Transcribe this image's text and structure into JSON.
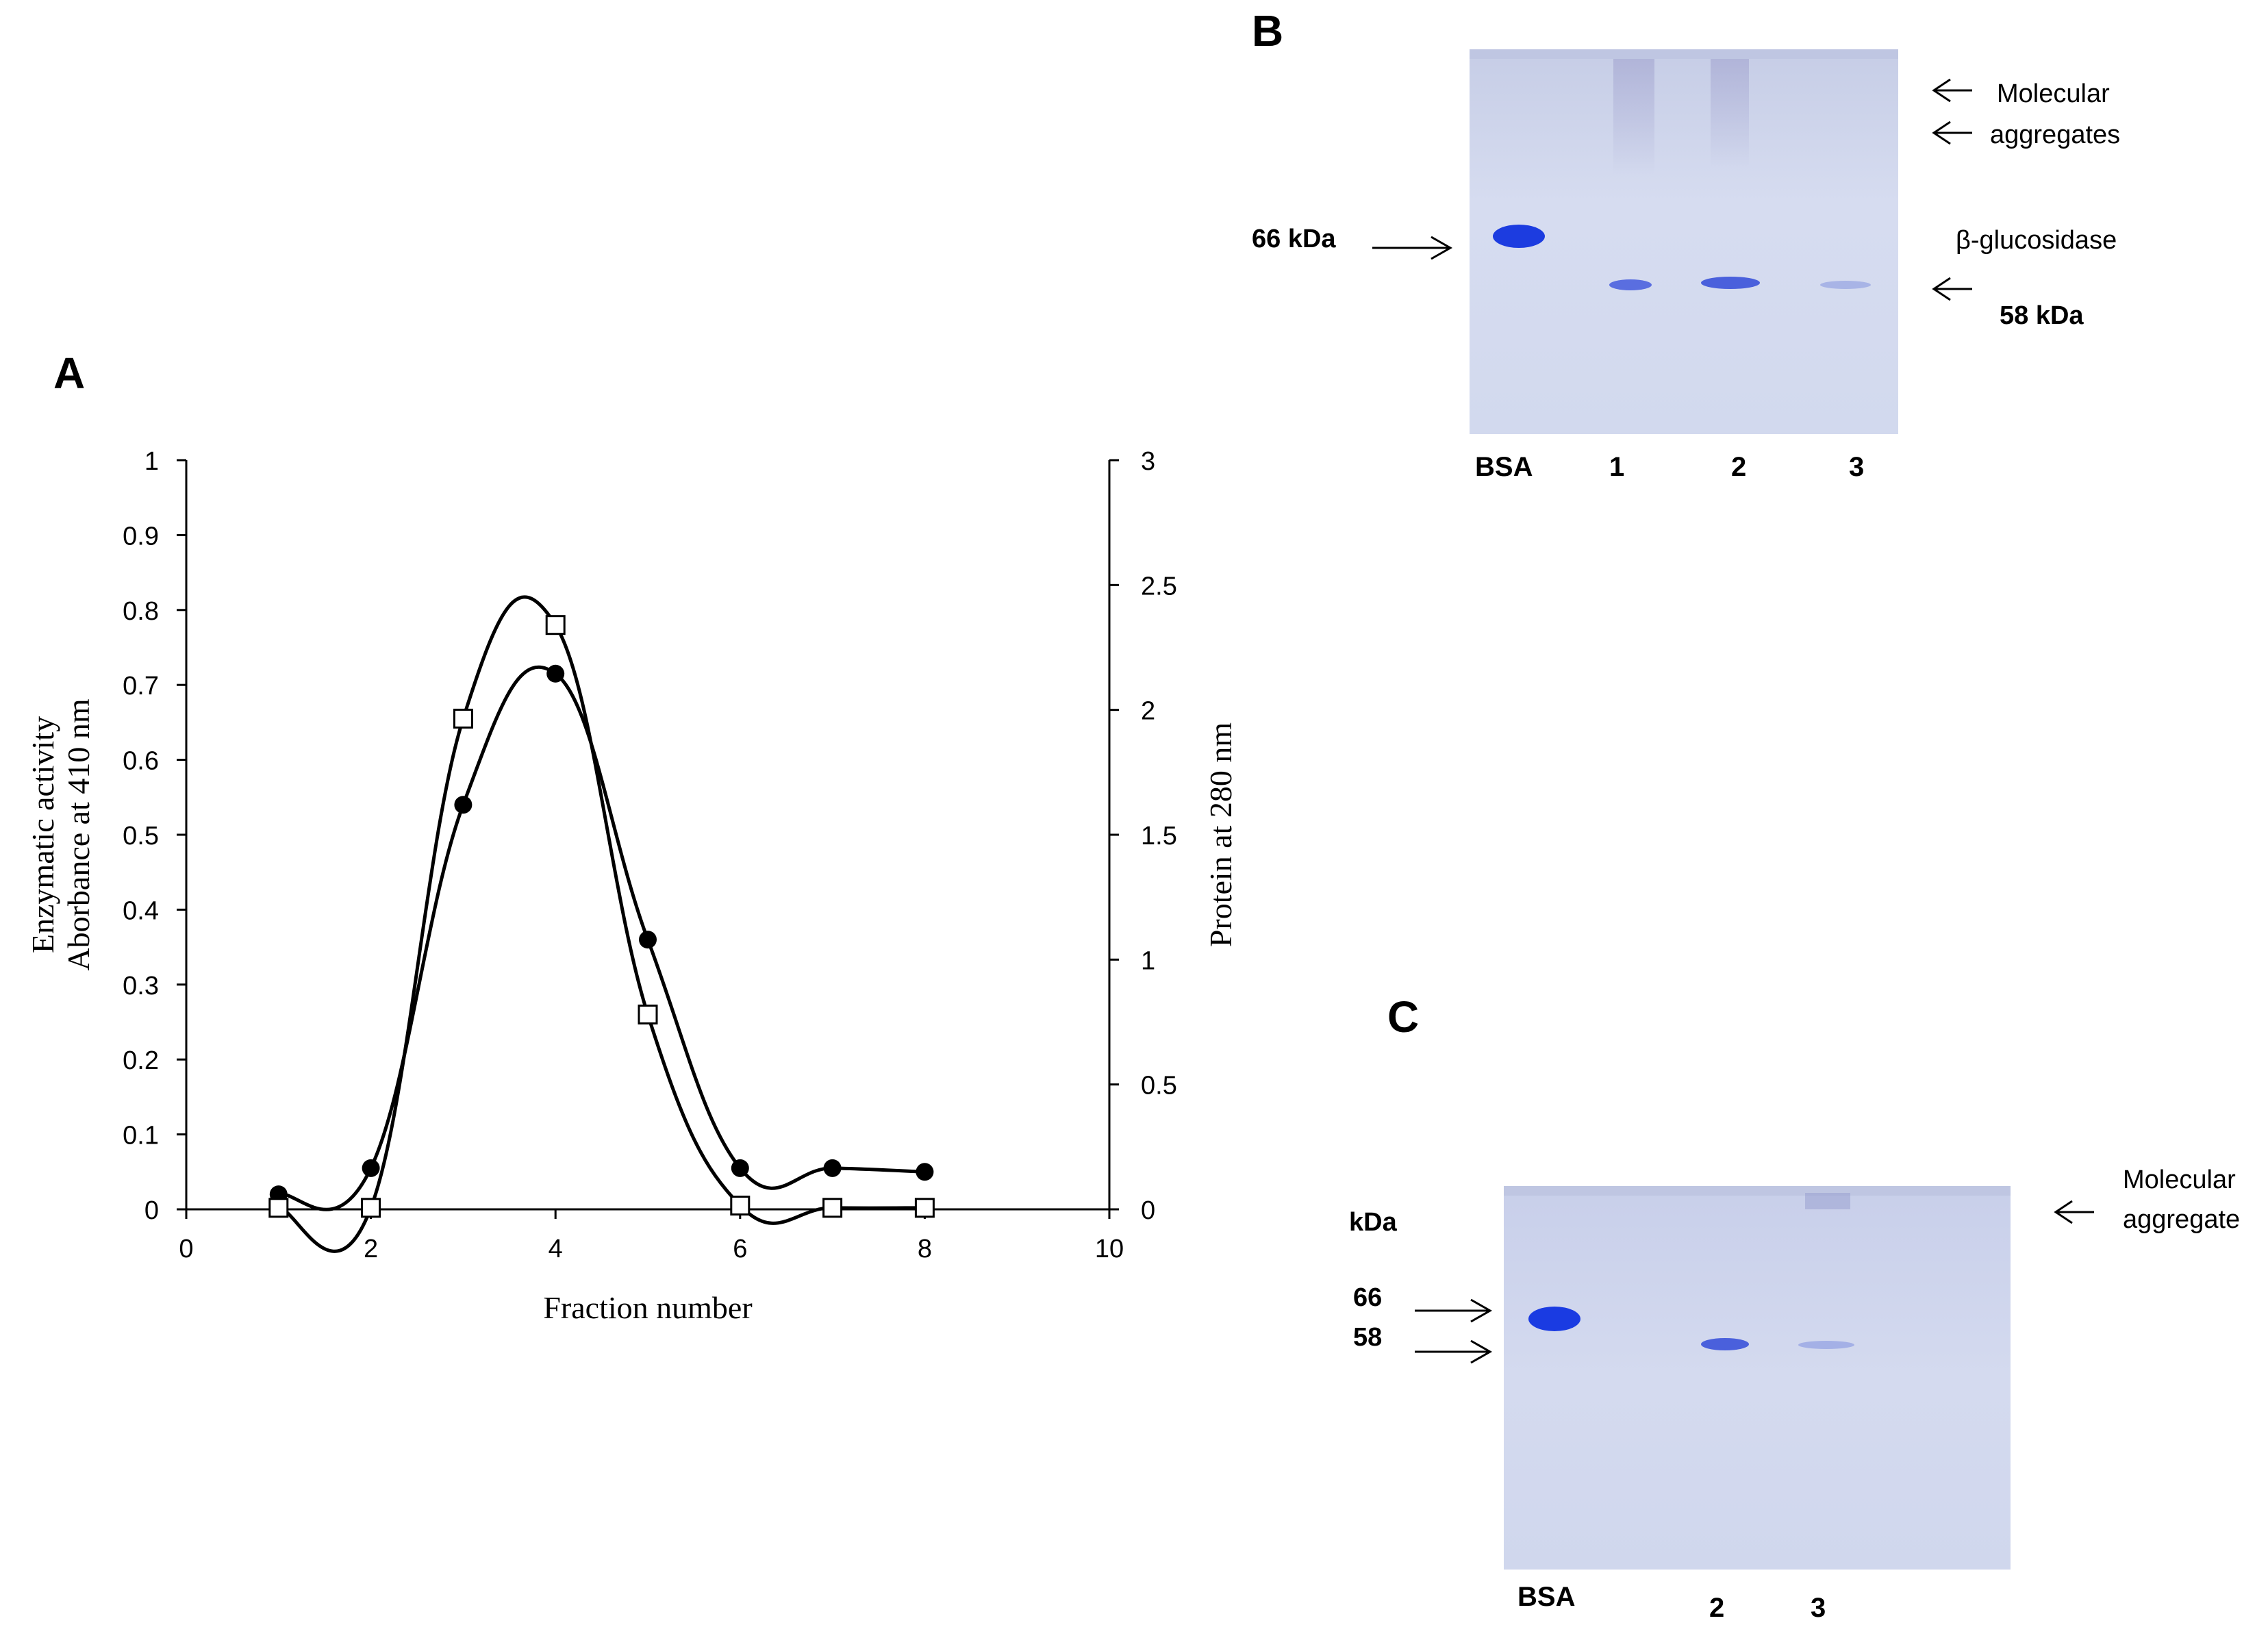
{
  "panels": {
    "a": "A",
    "b": "B",
    "c": "C"
  },
  "chart_data": {
    "type": "line",
    "title": "",
    "xlabel": "Fraction number",
    "ylabel_left": [
      "Enzymatic activity",
      "Aborbance at 410 nm"
    ],
    "ylabel_right": "Protein at 280 nm",
    "xlim": [
      0,
      10
    ],
    "ylim_left": [
      0,
      1
    ],
    "ylim_right": [
      0,
      3
    ],
    "x_ticks": [
      "0",
      "2",
      "4",
      "6",
      "8",
      "10"
    ],
    "y_left_ticks": [
      "0",
      "0.1",
      "0.2",
      "0.3",
      "0.4",
      "0.5",
      "0.6",
      "0.7",
      "0.8",
      "0.9",
      "1"
    ],
    "y_right_ticks": [
      "0",
      "0.5",
      "1",
      "1.5",
      "2",
      "2.5",
      "3"
    ],
    "series": [
      {
        "name": "Enzymatic activity",
        "marker": "filled-circle",
        "axis": "left",
        "x": [
          1,
          2,
          3,
          4,
          5,
          6,
          7,
          8
        ],
        "values": [
          0.02,
          0.055,
          0.54,
          0.715,
          0.36,
          0.055,
          0.055,
          0.05
        ]
      },
      {
        "name": "Protein",
        "marker": "open-square",
        "axis": "left",
        "x": [
          1,
          2,
          3,
          4,
          5,
          6,
          7,
          8
        ],
        "values": [
          0.002,
          0.002,
          0.655,
          0.78,
          0.26,
          0.005,
          0.002,
          0.002
        ]
      }
    ]
  },
  "gel_b": {
    "lanes": [
      "BSA",
      "1",
      "2",
      "3"
    ],
    "left_marker": "66 kDa",
    "right_labels": {
      "agg_1": "Molecular",
      "agg_2": "aggregates",
      "enzyme": "β-glucosidase",
      "size": "58 kDa"
    }
  },
  "gel_c": {
    "unit": "kDa",
    "markers": [
      "66",
      "58"
    ],
    "lanes": [
      "BSA",
      "2",
      "3"
    ],
    "right_labels": {
      "agg_1": "Molecular",
      "agg_2": "aggregate"
    }
  },
  "colors": {
    "band": "#1f3fd6",
    "gel_bg": "#cfd6ee",
    "line": "#000000"
  }
}
